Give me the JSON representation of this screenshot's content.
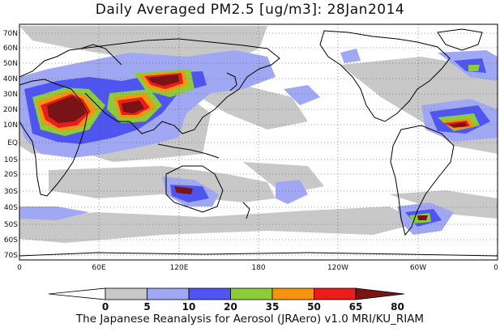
{
  "title": "Daily Averaged PM2.5 [ug/m3]: 28Jan2014",
  "footer": "The Japanese Reanalysis for Aerosol (JRAero) v1.0 MRI/KU_RIAM",
  "lat_labels": [
    "70N",
    "60N",
    "50N",
    "40N",
    "30N",
    "20N",
    "10N",
    "EQ",
    "10S",
    "20S",
    "30S",
    "40S",
    "50S",
    "60S",
    "70S"
  ],
  "lon_labels": [
    "0",
    "60E",
    "120E",
    "180",
    "120W",
    "60W",
    "0"
  ],
  "colorbar": {
    "ticks": [
      "0",
      "5",
      "10",
      "20",
      "35",
      "50",
      "65",
      "80"
    ],
    "colors": [
      "#ffffff",
      "#c8c8c8",
      "#a0a8f4",
      "#4f55f0",
      "#8ccc3a",
      "#f59410",
      "#ea1c1c",
      "#7a1414"
    ]
  }
}
